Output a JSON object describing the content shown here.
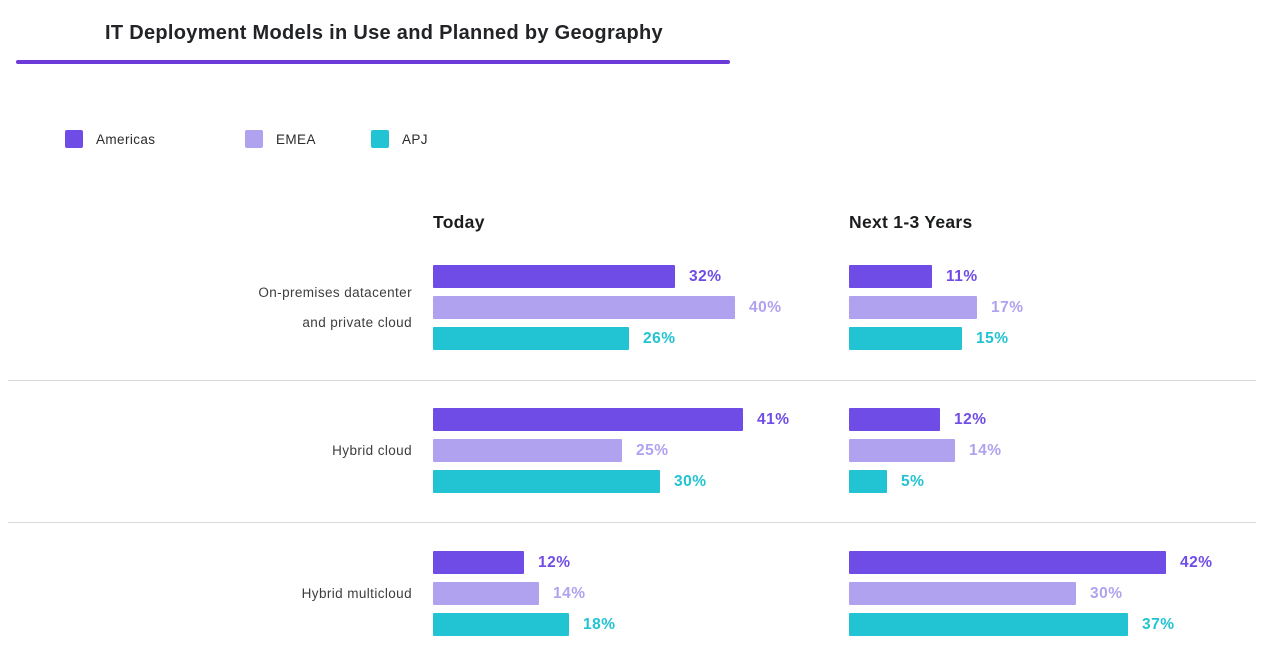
{
  "title": "IT Deployment Models in Use and Planned by Geography",
  "accent_underline_color": "#6B3AD9",
  "legend": [
    {
      "label": "Americas",
      "color": "#6F4CE6"
    },
    {
      "label": "EMEA",
      "color": "#B1A2F0"
    },
    {
      "label": "APJ",
      "color": "#22C3D2"
    }
  ],
  "columns": [
    {
      "label": "Today"
    },
    {
      "label": "Next 1-3 Years"
    }
  ],
  "chart_data": {
    "type": "bar",
    "orientation": "horizontal",
    "title": "IT Deployment Models in Use and Planned by Geography",
    "unit": "%",
    "xlim": [
      0,
      45
    ],
    "value_labels": true,
    "legend_position": "top-left",
    "grid": false,
    "series_names": [
      "Americas",
      "EMEA",
      "APJ"
    ],
    "series_colors": [
      "#6F4CE6",
      "#B1A2F0",
      "#22C3D2"
    ],
    "column_names": [
      "Today",
      "Next 1-3 Years"
    ],
    "groups": [
      {
        "category": "On-premises datacenter and private cloud",
        "category_lines": [
          "On-premises datacenter",
          "and private cloud"
        ],
        "today": [
          32,
          40,
          26
        ],
        "next_1_3_years": [
          11,
          17,
          15
        ]
      },
      {
        "category": "Hybrid cloud",
        "category_lines": [
          "Hybrid cloud"
        ],
        "today": [
          41,
          25,
          30
        ],
        "next_1_3_years": [
          12,
          14,
          5
        ]
      },
      {
        "category": "Hybrid multicloud",
        "category_lines": [
          "Hybrid multicloud"
        ],
        "today": [
          12,
          14,
          18
        ],
        "next_1_3_years": [
          42,
          30,
          37
        ]
      }
    ]
  }
}
